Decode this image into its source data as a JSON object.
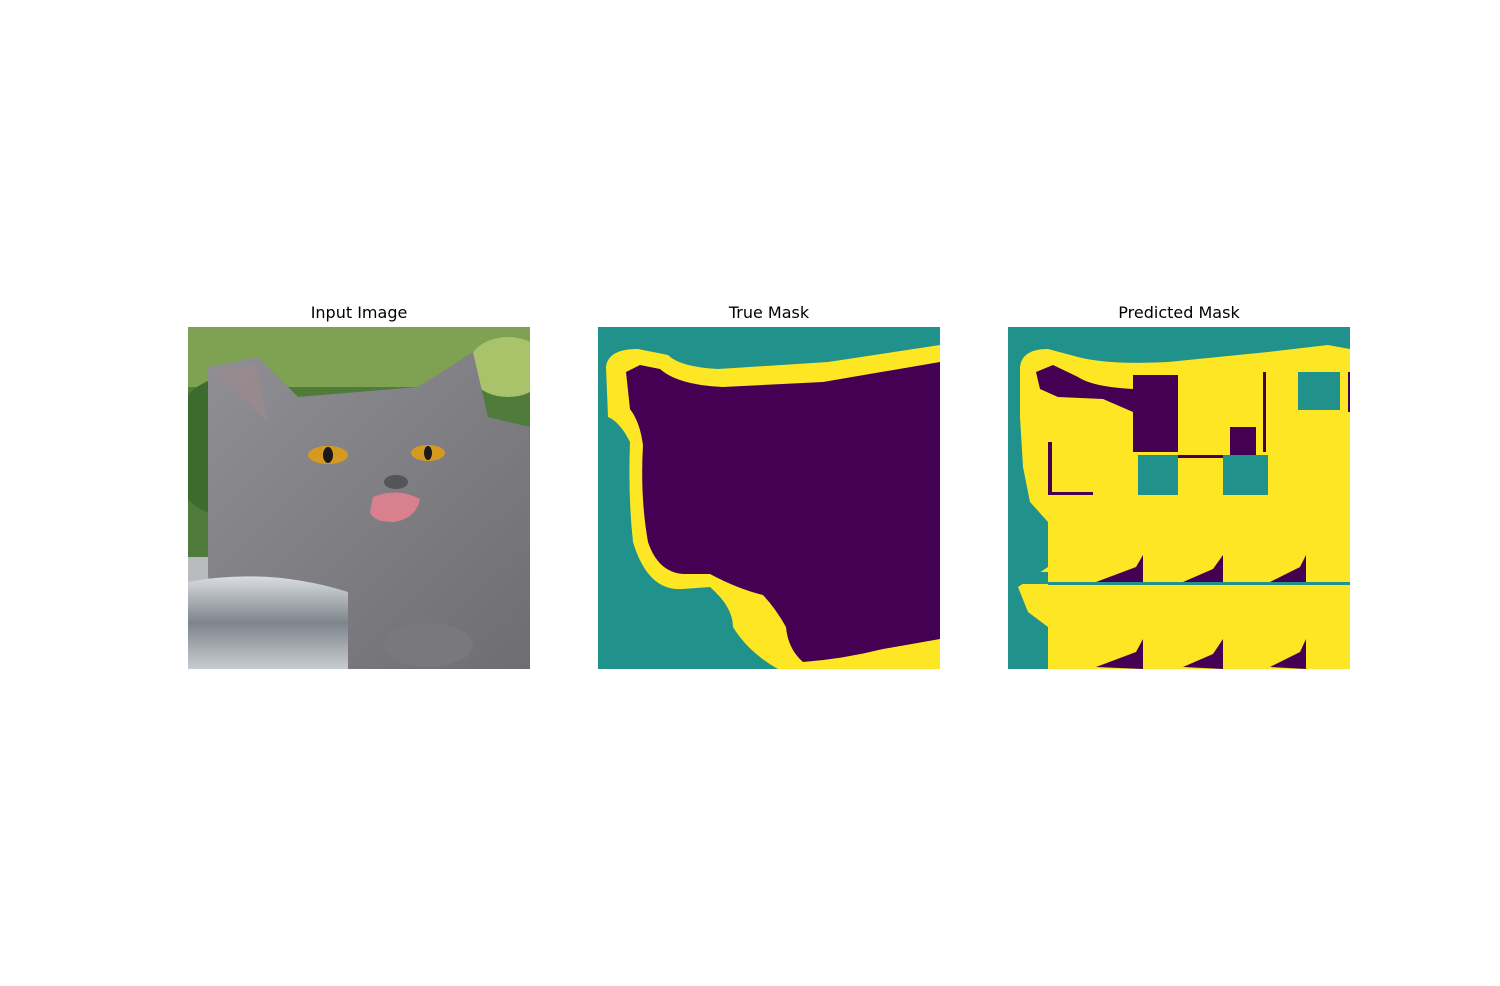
{
  "panels": [
    {
      "title": "Input Image"
    },
    {
      "title": "True Mask"
    },
    {
      "title": "Predicted Mask"
    }
  ],
  "colors": {
    "background_class": "#21918c",
    "object_class": "#440154",
    "border_class": "#fde725"
  }
}
